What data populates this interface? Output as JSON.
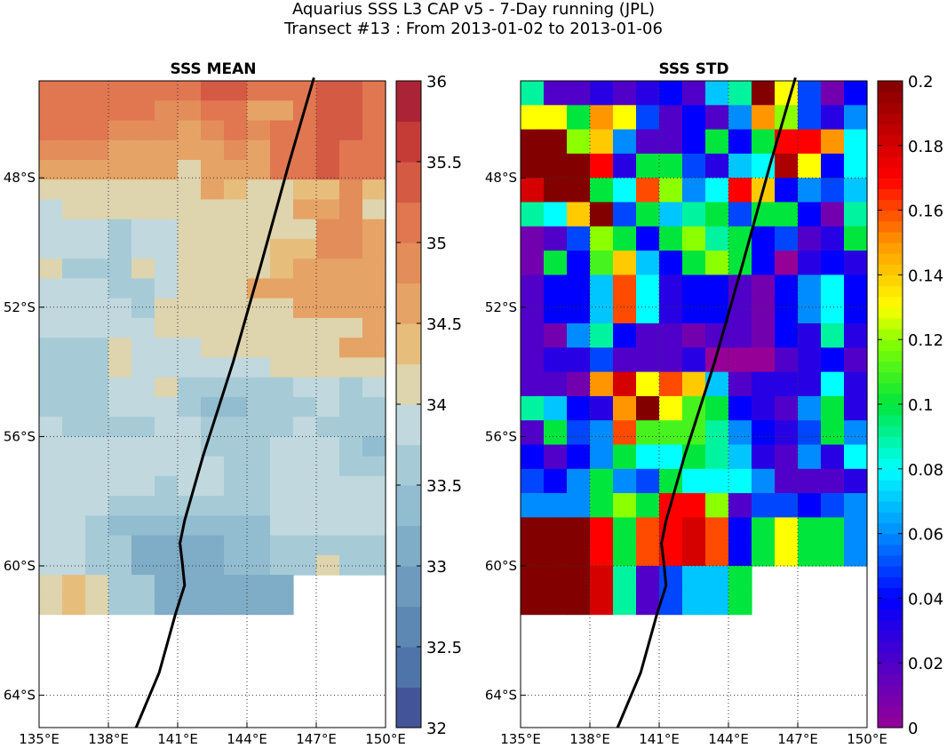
{
  "figure": {
    "title_line1": "Aquarius SSS L3 CAP v5 - 7-Day running (JPL)",
    "title_line2": "Transect #13 : From 2013-01-02 to 2013-01-06"
  },
  "chart_data": [
    {
      "type": "heatmap",
      "title": "SSS MEAN",
      "xlabel": "",
      "ylabel": "",
      "x_ticks": [
        "135°E",
        "138°E",
        "141°E",
        "144°E",
        "147°E",
        "150°E"
      ],
      "y_ticks": [
        "48°S",
        "52°S",
        "56°S",
        "60°S",
        "64°S"
      ],
      "xlim": [
        135,
        150
      ],
      "ylim": [
        -65,
        -45
      ],
      "grid": true,
      "colorbar": {
        "min": 32,
        "max": 36,
        "ticks": [
          "32",
          "32.5",
          "33",
          "33.5",
          "34",
          "34.5",
          "35",
          "35.5",
          "36"
        ]
      },
      "cell_size_deg": 1,
      "columns_lon_start": 135,
      "rows_lat_top": -45,
      "values": [
        [
          35.0,
          35.0,
          35.0,
          35.0,
          35.2,
          35.1,
          35.1,
          35.3,
          35.4,
          35.2,
          35.0,
          35.1,
          35.3,
          35.3,
          35.2
        ],
        [
          35.0,
          35.0,
          35.0,
          35.0,
          35.1,
          34.8,
          34.8,
          35.0,
          35.0,
          34.6,
          34.5,
          35.0,
          35.3,
          35.3,
          35.2
        ],
        [
          35.0,
          35.0,
          35.0,
          34.8,
          34.8,
          34.8,
          34.5,
          34.8,
          35.0,
          34.8,
          35.0,
          35.0,
          35.3,
          35.3,
          35.2
        ],
        [
          34.8,
          34.8,
          34.8,
          34.5,
          34.5,
          34.5,
          34.5,
          34.5,
          34.8,
          34.6,
          35.0,
          35.0,
          35.3,
          35.0,
          35.0
        ],
        [
          34.5,
          34.5,
          34.5,
          34.5,
          34.5,
          34.5,
          34.0,
          34.5,
          34.5,
          34.5,
          35.0,
          35.2,
          35.3,
          35.2,
          35.0
        ],
        [
          34.0,
          34.0,
          34.0,
          34.2,
          34.2,
          34.2,
          34.0,
          34.5,
          34.3,
          34.0,
          34.0,
          34.3,
          34.3,
          34.8,
          34.3
        ],
        [
          33.9,
          34.0,
          34.0,
          34.0,
          34.0,
          34.0,
          34.0,
          34.0,
          34.0,
          34.0,
          34.0,
          34.5,
          34.5,
          34.8,
          34.0
        ],
        [
          33.8,
          33.9,
          33.9,
          33.7,
          33.9,
          33.9,
          34.0,
          34.2,
          34.2,
          34.0,
          34.2,
          34.2,
          34.8,
          34.8,
          34.5
        ],
        [
          33.8,
          33.9,
          33.9,
          33.7,
          33.9,
          33.9,
          34.2,
          34.2,
          34.2,
          34.2,
          34.3,
          34.3,
          34.8,
          34.8,
          34.5
        ],
        [
          34.0,
          33.7,
          33.7,
          33.7,
          34.0,
          33.9,
          34.2,
          34.2,
          34.2,
          34.2,
          34.3,
          34.5,
          34.5,
          34.5,
          34.5
        ],
        [
          33.8,
          33.8,
          33.8,
          33.6,
          33.5,
          33.9,
          34.0,
          34.2,
          34.2,
          34.5,
          34.5,
          34.5,
          34.5,
          34.5,
          34.5
        ],
        [
          33.9,
          33.8,
          33.8,
          33.8,
          33.5,
          34.0,
          34.0,
          34.2,
          34.2,
          34.0,
          34.0,
          34.5,
          34.5,
          34.5,
          34.5
        ],
        [
          33.9,
          33.9,
          33.9,
          33.8,
          33.9,
          34.0,
          34.0,
          34.0,
          34.0,
          34.0,
          34.0,
          34.0,
          34.0,
          34.0,
          34.5
        ],
        [
          33.7,
          33.7,
          33.7,
          34.0,
          33.9,
          33.8,
          33.8,
          34.0,
          34.0,
          34.0,
          34.0,
          34.0,
          34.0,
          34.5,
          34.5
        ],
        [
          33.7,
          33.7,
          33.7,
          34.0,
          33.9,
          33.8,
          33.8,
          33.8,
          33.8,
          33.9,
          34.0,
          34.0,
          34.0,
          34.0,
          34.0
        ],
        [
          33.7,
          33.7,
          33.7,
          33.8,
          33.8,
          34.1,
          33.6,
          33.6,
          33.5,
          33.7,
          33.7,
          33.8,
          33.8,
          33.7,
          33.8
        ],
        [
          33.7,
          33.7,
          33.7,
          33.8,
          33.8,
          33.8,
          33.6,
          33.4,
          33.4,
          33.6,
          33.6,
          33.7,
          33.8,
          33.7,
          33.7
        ],
        [
          33.8,
          33.7,
          33.7,
          33.6,
          33.6,
          33.8,
          33.8,
          33.5,
          33.5,
          33.6,
          33.7,
          33.8,
          33.5,
          33.5,
          33.5
        ],
        [
          33.9,
          33.9,
          33.9,
          33.8,
          33.8,
          33.8,
          33.8,
          33.5,
          33.5,
          33.5,
          33.8,
          33.9,
          33.9,
          33.5,
          33.4
        ],
        [
          33.9,
          33.9,
          33.9,
          33.8,
          33.8,
          33.8,
          33.8,
          33.8,
          33.5,
          33.7,
          33.8,
          33.8,
          33.8,
          33.5,
          33.5
        ],
        [
          33.9,
          33.9,
          33.9,
          33.8,
          33.8,
          33.6,
          33.8,
          33.8,
          33.5,
          33.6,
          33.8,
          33.8,
          33.8,
          33.8,
          33.8
        ],
        [
          33.9,
          33.9,
          33.9,
          33.5,
          33.5,
          33.5,
          33.5,
          33.5,
          33.5,
          33.5,
          33.8,
          33.8,
          33.8,
          33.8,
          33.9
        ],
        [
          33.9,
          33.9,
          33.7,
          33.3,
          33.3,
          33.3,
          33.3,
          33.3,
          33.3,
          33.4,
          33.8,
          33.8,
          33.8,
          33.8,
          33.9
        ],
        [
          33.8,
          33.8,
          33.5,
          33.5,
          33.2,
          33.2,
          33.2,
          33.2,
          33.3,
          33.3,
          33.6,
          33.6,
          33.6,
          33.6,
          33.7
        ],
        [
          33.8,
          33.8,
          33.5,
          33.5,
          33.2,
          33.2,
          33.2,
          33.2,
          33.3,
          33.3,
          33.6,
          33.6,
          34.1,
          33.7,
          33.7
        ],
        [
          34.1,
          34.3,
          34.0,
          33.7,
          33.6,
          33.2,
          33.2,
          33.2,
          33.2,
          33.2,
          33.2,
          null,
          null,
          null,
          null
        ],
        [
          34.1,
          34.3,
          34.0,
          33.7,
          33.6,
          33.2,
          33.2,
          33.2,
          33.2,
          33.2,
          33.2,
          null,
          null,
          null,
          null
        ]
      ],
      "rows_deg_height": 0.75
    },
    {
      "type": "heatmap",
      "title": "SSS STD",
      "xlabel": "",
      "ylabel": "",
      "x_ticks": [
        "135°E",
        "138°E",
        "141°E",
        "144°E",
        "147°E",
        "150°E"
      ],
      "y_ticks": [
        "48°S",
        "52°S",
        "56°S",
        "60°S",
        "64°S"
      ],
      "xlim": [
        135,
        150
      ],
      "ylim": [
        -65,
        -45
      ],
      "grid": true,
      "colorbar": {
        "min": 0,
        "max": 0.2,
        "ticks": [
          "0",
          "0.02",
          "0.04",
          "0.06",
          "0.08",
          "0.1",
          "0.12",
          "0.14",
          "0.16",
          "0.18",
          "0.2"
        ]
      },
      "values": [
        [
          0.09,
          0.02,
          0.02,
          0.03,
          0.02,
          0.03,
          0.04,
          0.02,
          0.07,
          0.09,
          0.2,
          0.13,
          0.05,
          0.01,
          0.04
        ],
        [
          0.13,
          0.13,
          0.1,
          0.15,
          0.13,
          0.05,
          0.02,
          0.04,
          0.02,
          0.06,
          0.15,
          0.12,
          0.05,
          0.03,
          0.06
        ],
        [
          0.2,
          0.2,
          0.12,
          0.14,
          0.06,
          0.02,
          0.02,
          0.04,
          0.1,
          0.04,
          0.1,
          0.17,
          0.17,
          0.15,
          0.08
        ],
        [
          0.2,
          0.2,
          0.2,
          0.17,
          0.03,
          0.1,
          0.1,
          0.05,
          0.03,
          0.07,
          0.08,
          0.19,
          0.13,
          0.04,
          0.08
        ],
        [
          0.18,
          0.2,
          0.2,
          0.1,
          0.08,
          0.16,
          0.12,
          0.06,
          0.08,
          0.17,
          0.14,
          0.04,
          0.06,
          0.05,
          0.07
        ],
        [
          0.09,
          0.08,
          0.14,
          0.2,
          0.05,
          0.1,
          0.07,
          0.09,
          0.1,
          0.05,
          0.1,
          0.1,
          0.04,
          0.01,
          0.09
        ],
        [
          0.01,
          0.02,
          0.05,
          0.12,
          0.1,
          0.04,
          0.1,
          0.12,
          0.09,
          0.1,
          0.04,
          0.05,
          0.02,
          0.03,
          0.1
        ],
        [
          0.01,
          0.1,
          0.04,
          0.11,
          0.14,
          0.07,
          0.04,
          0.1,
          0.12,
          0.1,
          0.04,
          0.0,
          0.03,
          0.04,
          0.03
        ],
        [
          0.02,
          0.04,
          0.04,
          0.07,
          0.16,
          0.08,
          0.03,
          0.04,
          0.04,
          0.02,
          0.01,
          0.04,
          0.06,
          0.08,
          0.04
        ],
        [
          0.02,
          0.04,
          0.04,
          0.07,
          0.16,
          0.08,
          0.03,
          0.04,
          0.04,
          0.02,
          0.01,
          0.04,
          0.06,
          0.08,
          0.04
        ],
        [
          0.02,
          0.01,
          0.06,
          0.09,
          0.04,
          0.02,
          0.02,
          0.01,
          0.02,
          0.02,
          0.01,
          0.04,
          0.03,
          0.09,
          0.03
        ],
        [
          0.02,
          0.03,
          0.03,
          0.05,
          0.02,
          0.02,
          0.02,
          0.03,
          0.0,
          0.0,
          0.0,
          0.02,
          0.03,
          0.04,
          0.02
        ],
        [
          0.02,
          0.02,
          0.01,
          0.15,
          0.18,
          0.13,
          0.16,
          0.14,
          0.07,
          0.02,
          0.03,
          0.03,
          0.03,
          0.08,
          0.03
        ],
        [
          0.09,
          0.07,
          0.04,
          0.03,
          0.15,
          0.2,
          0.13,
          0.11,
          0.1,
          0.04,
          0.03,
          0.02,
          0.06,
          0.1,
          0.03
        ],
        [
          0.02,
          0.1,
          0.05,
          0.06,
          0.16,
          0.11,
          0.11,
          0.11,
          0.09,
          0.06,
          0.04,
          0.03,
          0.05,
          0.1,
          0.06
        ],
        [
          0.04,
          0.02,
          0.04,
          0.06,
          0.1,
          0.08,
          0.08,
          0.1,
          0.09,
          0.07,
          0.03,
          0.02,
          0.06,
          0.03,
          0.08
        ],
        [
          0.05,
          0.04,
          0.06,
          0.1,
          0.06,
          0.05,
          0.1,
          0.08,
          0.08,
          0.08,
          0.06,
          0.02,
          0.02,
          0.02,
          0.03
        ],
        [
          0.06,
          0.06,
          0.06,
          0.1,
          0.12,
          0.1,
          0.17,
          0.17,
          0.12,
          0.02,
          0.05,
          0.05,
          0.04,
          0.05,
          0.06
        ],
        [
          0.2,
          0.2,
          0.2,
          0.17,
          0.1,
          0.16,
          0.17,
          0.18,
          0.16,
          0.04,
          0.1,
          0.13,
          0.1,
          0.1,
          0.06
        ],
        [
          0.2,
          0.2,
          0.2,
          0.17,
          0.1,
          0.16,
          0.17,
          0.18,
          0.16,
          0.04,
          0.1,
          0.13,
          0.1,
          0.1,
          0.06
        ],
        [
          0.2,
          0.2,
          0.2,
          0.18,
          0.09,
          0.02,
          0.05,
          0.07,
          0.07,
          0.1,
          null,
          null,
          null,
          null,
          null
        ],
        [
          0.2,
          0.2,
          0.2,
          0.18,
          0.09,
          0.02,
          0.05,
          0.07,
          0.07,
          0.1,
          null,
          null,
          null,
          null,
          null
        ]
      ]
    }
  ],
  "transect": {
    "points_lon_lat": [
      [
        146.9,
        -44.9
      ],
      [
        145.8,
        -47.6
      ],
      [
        144.6,
        -50.7
      ],
      [
        143.4,
        -53.7
      ],
      [
        142.1,
        -56.6
      ],
      [
        141.3,
        -58.6
      ],
      [
        141.1,
        -59.3
      ],
      [
        141.2,
        -59.9
      ],
      [
        141.3,
        -60.6
      ],
      [
        140.9,
        -61.5
      ],
      [
        140.2,
        -63.3
      ],
      [
        139.2,
        -65.0
      ]
    ]
  }
}
